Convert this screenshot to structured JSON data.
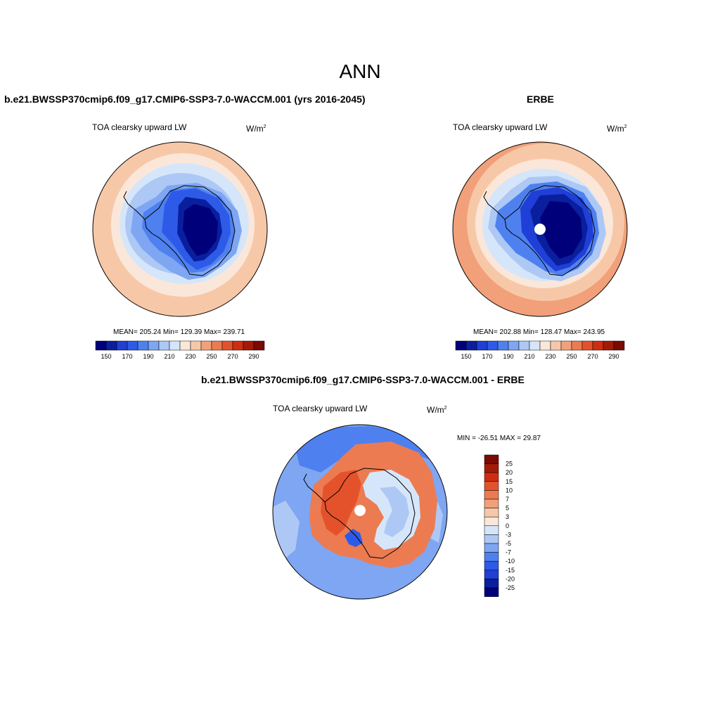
{
  "title": "ANN",
  "palette": {
    "abs": [
      "#00007a",
      "#0a1f9e",
      "#1f3fd6",
      "#2e5ae8",
      "#4f80ef",
      "#7ea6f2",
      "#adc8f5",
      "#d6e6fa",
      "#fbe7d9",
      "#f7c8a8",
      "#f2a07a",
      "#ec7b52",
      "#e4522c",
      "#cf2d12",
      "#a51a06",
      "#7a0a02"
    ],
    "diff": [
      "#7a0a02",
      "#a51a06",
      "#cf2d12",
      "#e4522c",
      "#ec7b52",
      "#f2a07a",
      "#f7c8a8",
      "#fbe7d9",
      "#d6e6fa",
      "#adc8f5",
      "#7ea6f2",
      "#4f80ef",
      "#2e5ae8",
      "#1f3fd6",
      "#0a1f9e",
      "#00007a"
    ]
  },
  "panels": {
    "model": {
      "title": "b.e21.BWSSP370cmip6.f09_g17.CMIP6-SSP3-7.0-WACCM.001 (yrs 2016-2045)",
      "variable": "TOA clearsky upward LW",
      "units": "W/m",
      "units_sup": "2",
      "stats": "MEAN= 205.24  Min= 129.39  Max= 239.71",
      "labelbar_ticks": [
        "150",
        "170",
        "190",
        "210",
        "230",
        "250",
        "270",
        "290"
      ]
    },
    "obs": {
      "title": "ERBE",
      "variable": "TOA clearsky upward LW",
      "units": "W/m",
      "units_sup": "2",
      "stats": "MEAN= 202.88  Min= 128.47  Max= 243.95",
      "labelbar_ticks": [
        "150",
        "170",
        "190",
        "210",
        "230",
        "250",
        "270",
        "290"
      ]
    },
    "diff": {
      "title": "b.e21.BWSSP370cmip6.f09_g17.CMIP6-SSP3-7.0-WACCM.001 - ERBE",
      "variable": "TOA clearsky upward LW",
      "units": "W/m",
      "units_sup": "2",
      "minmax": "MIN = -26.51 MAX =  29.87",
      "labelbar_ticks": [
        "25",
        "20",
        "15",
        "10",
        "7",
        "5",
        "3",
        "0",
        "-3",
        "-5",
        "-7",
        "-10",
        "-15",
        "-20",
        "-25"
      ]
    }
  }
}
